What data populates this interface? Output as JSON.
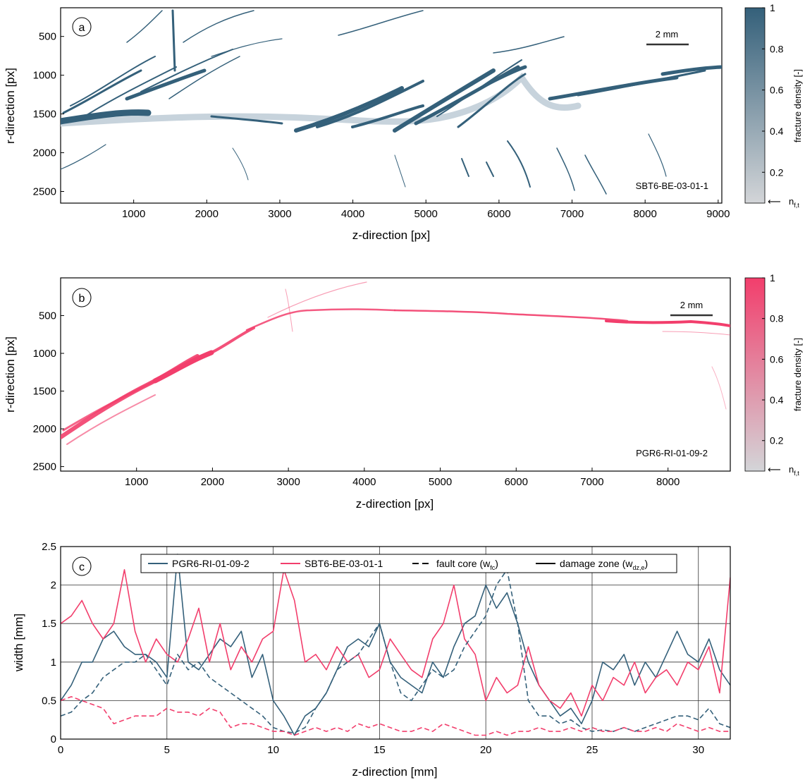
{
  "colors": {
    "sbt": "#34607a",
    "pgr": "#f23e6c",
    "gray": "#cfd2d6",
    "sbt_light": "#c3d0da",
    "pgr_light": "#e7a9ba"
  },
  "scalebar_label": "2 mm",
  "chart_data": [
    {
      "panel": "a",
      "type": "heatmap",
      "sample_label": "SBT6-BE-03-01-1",
      "xlabel": "z-direction [px]",
      "ylabel": "r-direction [px]",
      "xticks": [
        1000,
        2000,
        3000,
        4000,
        5000,
        6000,
        7000,
        8000,
        9000
      ],
      "yticks": [
        500,
        1000,
        1500,
        2000,
        2500
      ],
      "xlim": [
        0,
        9050
      ],
      "ylim": [
        2650,
        130
      ],
      "colorbar": {
        "label": "fracture density [-]",
        "ticks": [
          0.2,
          0.4,
          0.6,
          0.8,
          1
        ],
        "marker": "n",
        "marker_sub": "f,t",
        "range": [
          0.05,
          1
        ],
        "color": "sbt"
      }
    },
    {
      "panel": "b",
      "type": "heatmap",
      "sample_label": "PGR6-RI-01-09-2",
      "xlabel": "z-direction [px]",
      "ylabel": "r-direction [px]",
      "xticks": [
        1000,
        2000,
        3000,
        4000,
        5000,
        6000,
        7000,
        8000
      ],
      "yticks": [
        500,
        1000,
        1500,
        2000,
        2500
      ],
      "xlim": [
        0,
        8820
      ],
      "ylim": [
        2560,
        0
      ],
      "colorbar": {
        "label": "fracture density [-]",
        "ticks": [
          0.2,
          0.4,
          0.6,
          0.8,
          1
        ],
        "marker": "n",
        "marker_sub": "f,t",
        "range": [
          0.05,
          1
        ],
        "color": "pgr"
      }
    },
    {
      "panel": "c",
      "type": "line",
      "xlabel": "z-direction [mm]",
      "ylabel": "width [mm]",
      "xlim": [
        0,
        31.5
      ],
      "ylim": [
        0,
        2.5
      ],
      "xticks": [
        0,
        5,
        10,
        15,
        20,
        25,
        30
      ],
      "yticks": [
        0,
        0.5,
        1,
        1.5,
        2,
        2.5
      ],
      "grid": true,
      "legend": [
        {
          "name": "PGR6-RI-01-09-2",
          "style": "solid",
          "color": "sbt"
        },
        {
          "name": "SBT6-BE-03-01-1",
          "style": "solid",
          "color": "pgr"
        },
        {
          "name": "fault core (w",
          "sub": "fc",
          "tail": ")",
          "style": "dashed",
          "color": "#000000"
        },
        {
          "name": "damage zone (w",
          "sub": "dz,e",
          "tail": ")",
          "style": "solid",
          "color": "#000000"
        }
      ],
      "x_breaks": [
        0,
        0.5,
        1,
        1.5,
        2,
        2.5,
        3,
        3.5,
        4,
        4.5,
        5,
        5.5,
        6,
        6.5,
        7,
        7.5,
        8,
        8.5,
        9,
        9.5,
        10,
        10.5,
        11,
        11.5,
        12,
        12.5,
        13,
        13.5,
        14,
        14.5,
        15,
        15.5,
        16,
        16.5,
        17,
        17.5,
        18,
        18.5,
        19,
        19.5,
        20,
        20.5,
        21,
        21.5,
        22,
        22.5,
        23,
        23.5,
        24,
        24.5,
        25,
        25.5,
        26,
        26.5,
        27,
        27.5,
        28,
        28.5,
        29,
        29.5,
        30,
        30.5,
        31,
        31.5
      ],
      "series": [
        {
          "name": "PGR6-RI-01-09-2",
          "role": "damage zone (w_dz,e)",
          "color": "sbt",
          "dash": false,
          "values": [
            0.5,
            0.7,
            1.0,
            1.0,
            1.3,
            1.4,
            1.2,
            1.1,
            1.1,
            1.0,
            0.8,
            2.4,
            1.0,
            0.9,
            1.1,
            1.3,
            1.2,
            1.4,
            0.8,
            1.1,
            0.5,
            0.3,
            0.05,
            0.3,
            0.4,
            0.6,
            0.9,
            1.2,
            1.3,
            1.2,
            1.5,
            1.0,
            0.8,
            0.7,
            0.6,
            1.0,
            0.8,
            1.2,
            1.5,
            1.6,
            2.0,
            1.7,
            1.9,
            1.5,
            1.0,
            0.7,
            0.5,
            0.3,
            0.4,
            0.2,
            0.5,
            1.0,
            0.9,
            1.1,
            0.7,
            1.0,
            0.8,
            1.1,
            1.4,
            1.1,
            1.0,
            1.3,
            0.9,
            0.7
          ]
        },
        {
          "name": "SBT6-BE-03-01-1",
          "role": "damage zone (w_dz,e)",
          "color": "pgr",
          "dash": false,
          "values": [
            1.5,
            1.6,
            1.8,
            1.5,
            1.3,
            1.5,
            2.2,
            1.4,
            1.0,
            1.3,
            1.1,
            1.0,
            1.3,
            1.7,
            1.0,
            1.5,
            0.9,
            1.2,
            1.0,
            1.3,
            1.4,
            2.2,
            1.8,
            1.0,
            1.1,
            0.9,
            1.2,
            1.0,
            1.1,
            0.8,
            0.9,
            1.3,
            1.1,
            0.9,
            0.8,
            1.3,
            1.5,
            2.0,
            1.3,
            1.1,
            0.5,
            0.8,
            0.6,
            0.7,
            1.2,
            0.7,
            0.5,
            0.4,
            0.6,
            0.3,
            0.7,
            0.5,
            0.8,
            0.7,
            1.0,
            0.6,
            0.8,
            0.9,
            0.7,
            1.0,
            0.9,
            1.2,
            0.6,
            2.1
          ]
        },
        {
          "name": "PGR6-RI-01-09-2",
          "role": "fault core (w_fc)",
          "color": "sbt",
          "dash": true,
          "values": [
            0.3,
            0.35,
            0.5,
            0.6,
            0.8,
            0.9,
            1.0,
            1.0,
            1.1,
            0.9,
            0.7,
            1.1,
            0.9,
            1.0,
            0.8,
            0.7,
            0.6,
            0.5,
            0.4,
            0.3,
            0.15,
            0.1,
            0.08,
            0.15,
            0.4,
            0.6,
            0.9,
            1.0,
            1.1,
            1.3,
            1.5,
            1.0,
            0.6,
            0.5,
            0.7,
            0.9,
            0.8,
            0.9,
            1.2,
            1.4,
            1.6,
            2.0,
            2.2,
            1.5,
            0.5,
            0.3,
            0.3,
            0.2,
            0.25,
            0.15,
            0.1,
            0.12,
            0.1,
            0.15,
            0.1,
            0.15,
            0.2,
            0.25,
            0.3,
            0.3,
            0.25,
            0.4,
            0.2,
            0.15
          ]
        },
        {
          "name": "SBT6-BE-03-01-1",
          "role": "fault core (w_fc)",
          "color": "pgr",
          "dash": true,
          "values": [
            0.5,
            0.55,
            0.5,
            0.45,
            0.4,
            0.2,
            0.25,
            0.3,
            0.3,
            0.3,
            0.4,
            0.35,
            0.35,
            0.3,
            0.4,
            0.35,
            0.15,
            0.2,
            0.2,
            0.15,
            0.1,
            0.1,
            0.05,
            0.1,
            0.15,
            0.1,
            0.15,
            0.1,
            0.2,
            0.15,
            0.2,
            0.15,
            0.1,
            0.1,
            0.15,
            0.1,
            0.2,
            0.15,
            0.1,
            0.05,
            0.05,
            0.1,
            0.05,
            0.1,
            0.1,
            0.15,
            0.1,
            0.1,
            0.15,
            0.1,
            0.15,
            0.1,
            0.1,
            0.15,
            0.1,
            0.1,
            0.15,
            0.1,
            0.2,
            0.15,
            0.1,
            0.15,
            0.1,
            0.1
          ]
        }
      ]
    }
  ]
}
